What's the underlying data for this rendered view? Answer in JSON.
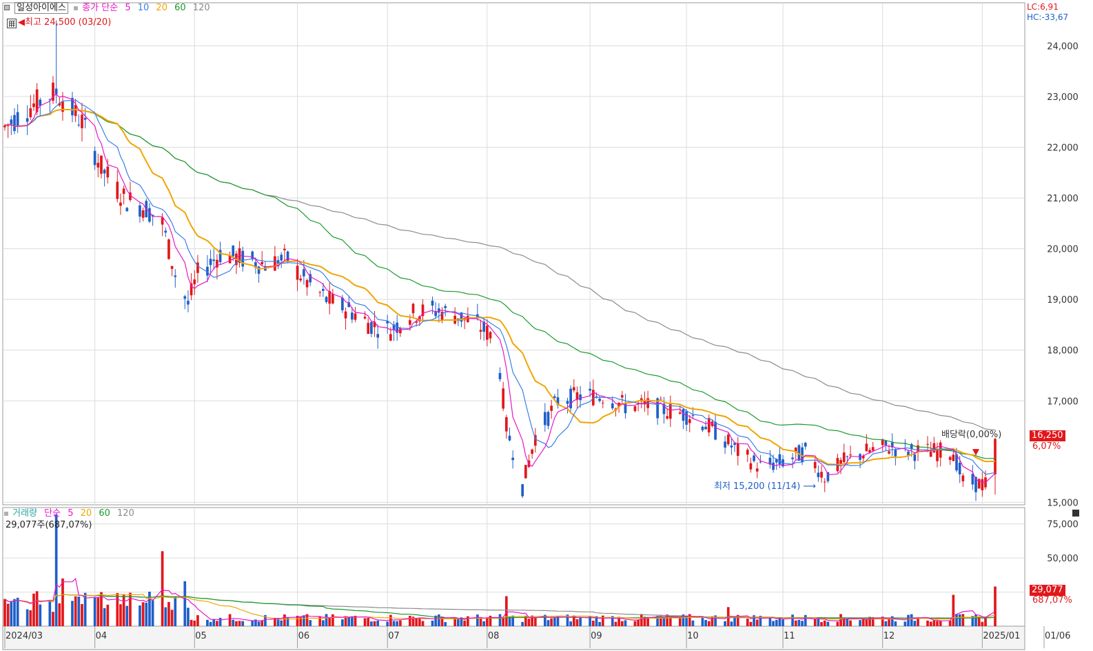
{
  "header": {
    "stock_name": "일성아이에스",
    "price_legend": {
      "prefix": "종가 단순",
      "ma": [
        "5",
        "10",
        "20",
        "60",
        "120"
      ]
    },
    "high_label": "최고 24,500 (03/20)",
    "low_label": "최저 15,200 (11/14)",
    "lc": "LC:6,91",
    "hc": "HC:-33,67",
    "dividend_label": "배당락(0,00%)",
    "last_price": "16,250",
    "last_price_pct": "6,07%"
  },
  "volume_panel": {
    "title": "거래량",
    "legend": {
      "prefix": "단순",
      "ma": [
        "5",
        "20",
        "60",
        "120"
      ]
    },
    "current": "29,077주(687,07%)",
    "last_volume": "29,077",
    "last_volume_pct": "687,07%"
  },
  "colors": {
    "up": "#e2171b",
    "down": "#1f5fc8",
    "ma5": "#e815c8",
    "ma10": "#3a7ee8",
    "ma20": "#f0a500",
    "ma60": "#1a9a2a",
    "ma120": "#8a8a8a",
    "grid": "#dcdcdc",
    "axis_text": "#333333"
  },
  "chart_data": [
    {
      "type": "candlestick",
      "title": "",
      "ylim": [
        14950,
        24850
      ],
      "yticks": [
        "24,000",
        "23,000",
        "22,000",
        "21,000",
        "20,000",
        "19,000",
        "18,000",
        "17,000",
        "15,000"
      ],
      "yticks_values": [
        24000,
        23000,
        22000,
        21000,
        20000,
        19000,
        18000,
        17000,
        15000
      ],
      "x_range": [
        "2024-03-04",
        "2025-01-06"
      ],
      "x_ticks": [
        {
          "label": "2024/03",
          "date": "2024-03-04"
        },
        {
          "label": "04",
          "date": "2024-04-01"
        },
        {
          "label": "05",
          "date": "2024-05-02"
        },
        {
          "label": "06",
          "date": "2024-06-03"
        },
        {
          "label": "07",
          "date": "2024-07-01"
        },
        {
          "label": "08",
          "date": "2024-08-01"
        },
        {
          "label": "09",
          "date": "2024-09-02"
        },
        {
          "label": "10",
          "date": "2024-10-02"
        },
        {
          "label": "11",
          "date": "2024-11-01"
        },
        {
          "label": "12",
          "date": "2024-12-02"
        },
        {
          "label": "2025/01",
          "date": "2025-01-02"
        },
        {
          "label": "01/06",
          "date": "2025-01-06"
        }
      ],
      "ohlc_keyframes": [
        {
          "date": "2024-03-04",
          "close": 22400
        },
        {
          "date": "2024-03-12",
          "close": 22800
        },
        {
          "date": "2024-03-20",
          "close": 23100
        },
        {
          "date": "2024-03-28",
          "close": 22500
        },
        {
          "date": "2024-04-03",
          "close": 21600
        },
        {
          "date": "2024-04-10",
          "close": 21000
        },
        {
          "date": "2024-04-17",
          "close": 20800
        },
        {
          "date": "2024-04-22",
          "close": 20500
        },
        {
          "date": "2024-04-26",
          "close": 19500
        },
        {
          "date": "2024-04-30",
          "close": 18900
        },
        {
          "date": "2024-05-03",
          "close": 19500
        },
        {
          "date": "2024-05-10",
          "close": 19900
        },
        {
          "date": "2024-05-17",
          "close": 19800
        },
        {
          "date": "2024-05-24",
          "close": 19700
        },
        {
          "date": "2024-05-31",
          "close": 19800
        },
        {
          "date": "2024-06-05",
          "close": 19400
        },
        {
          "date": "2024-06-12",
          "close": 19000
        },
        {
          "date": "2024-06-19",
          "close": 18800
        },
        {
          "date": "2024-06-26",
          "close": 18500
        },
        {
          "date": "2024-07-02",
          "close": 18400
        },
        {
          "date": "2024-07-08",
          "close": 18700
        },
        {
          "date": "2024-07-15",
          "close": 18800
        },
        {
          "date": "2024-07-22",
          "close": 18700
        },
        {
          "date": "2024-07-29",
          "close": 18500
        },
        {
          "date": "2024-08-02",
          "close": 18300
        },
        {
          "date": "2024-08-05",
          "close": 17600
        },
        {
          "date": "2024-08-07",
          "close": 16500
        },
        {
          "date": "2024-08-12",
          "close": 15300
        },
        {
          "date": "2024-08-16",
          "close": 16300
        },
        {
          "date": "2024-08-23",
          "close": 17000
        },
        {
          "date": "2024-08-30",
          "close": 17100
        },
        {
          "date": "2024-09-06",
          "close": 17100
        },
        {
          "date": "2024-09-13",
          "close": 16900
        },
        {
          "date": "2024-09-20",
          "close": 16900
        },
        {
          "date": "2024-09-27",
          "close": 16800
        },
        {
          "date": "2024-10-04",
          "close": 16700
        },
        {
          "date": "2024-10-11",
          "close": 16400
        },
        {
          "date": "2024-10-18",
          "close": 16000
        },
        {
          "date": "2024-10-25",
          "close": 15700
        },
        {
          "date": "2024-11-01",
          "close": 15800
        },
        {
          "date": "2024-11-08",
          "close": 16000
        },
        {
          "date": "2024-11-14",
          "close": 15500
        },
        {
          "date": "2024-11-20",
          "close": 15800
        },
        {
          "date": "2024-11-27",
          "close": 16000
        },
        {
          "date": "2024-12-04",
          "close": 16100
        },
        {
          "date": "2024-12-11",
          "close": 16000
        },
        {
          "date": "2024-12-18",
          "close": 16000
        },
        {
          "date": "2024-12-24",
          "close": 16000
        },
        {
          "date": "2024-12-27",
          "close": 15400
        },
        {
          "date": "2025-01-03",
          "close": 15350
        },
        {
          "date": "2025-01-06",
          "close": 16250
        }
      ],
      "high": {
        "value": 24500,
        "date": "2024-03-20"
      },
      "low": {
        "value": 15200,
        "date": "2024-11-14"
      },
      "last_close": 16250,
      "series": [
        {
          "name": "5",
          "key": "ma5"
        },
        {
          "name": "10",
          "key": "ma10"
        },
        {
          "name": "20",
          "key": "ma20"
        },
        {
          "name": "60",
          "key": "ma60"
        },
        {
          "name": "120",
          "key": "ma120"
        }
      ],
      "ma_curves": {
        "ma20": [
          22800,
          22500,
          21800,
          21000,
          20300,
          19800,
          19600,
          19500,
          19300,
          19000,
          18700,
          18500,
          18600,
          18600,
          18500,
          18100,
          17300,
          17000,
          16800,
          16900,
          16700,
          16400,
          16000,
          15900,
          15800,
          15900,
          16000,
          15950,
          16000,
          15950
        ],
        "ma60": [
          22800,
          22500,
          22200,
          21800,
          21100,
          20500,
          20000,
          19600,
          19300,
          19000,
          18700,
          18400,
          18100,
          17900,
          17700,
          17400,
          17100,
          16800,
          16600,
          16450,
          16350,
          16200,
          16100,
          15950
        ],
        "ma120": [
          22200,
          22100,
          22050,
          22000,
          21800,
          21100,
          20800,
          20500,
          19900,
          19200,
          18600,
          18100,
          17800,
          17500,
          17200,
          16950,
          16850,
          16700,
          16600
        ]
      },
      "grid": true,
      "legend_position": "top-left"
    },
    {
      "type": "bar",
      "title": "거래량",
      "ylim": [
        0,
        87000
      ],
      "yticks": [
        "75,000",
        "50,000",
        "25,000"
      ],
      "yticks_values": [
        75000,
        50000,
        25000
      ],
      "volume_keyframes": [
        {
          "date": "2024-03-20",
          "volume": 82000
        },
        {
          "date": "2024-03-22",
          "volume": 35000
        },
        {
          "date": "2024-04-22",
          "volume": 55000
        },
        {
          "date": "2024-04-29",
          "volume": 33000
        },
        {
          "date": "2024-08-07",
          "volume": 22000
        },
        {
          "date": "2024-10-15",
          "volume": 14000
        },
        {
          "date": "2024-12-24",
          "volume": 23000
        },
        {
          "date": "2025-01-06",
          "volume": 29077
        }
      ],
      "volume_ma_ratio": 687.07,
      "series": [
        {
          "name": "5",
          "key": "ma5"
        },
        {
          "name": "20",
          "key": "ma20"
        },
        {
          "name": "60",
          "key": "ma60"
        },
        {
          "name": "120",
          "key": "ma120"
        }
      ],
      "grid": true,
      "legend_position": "top-left"
    }
  ]
}
